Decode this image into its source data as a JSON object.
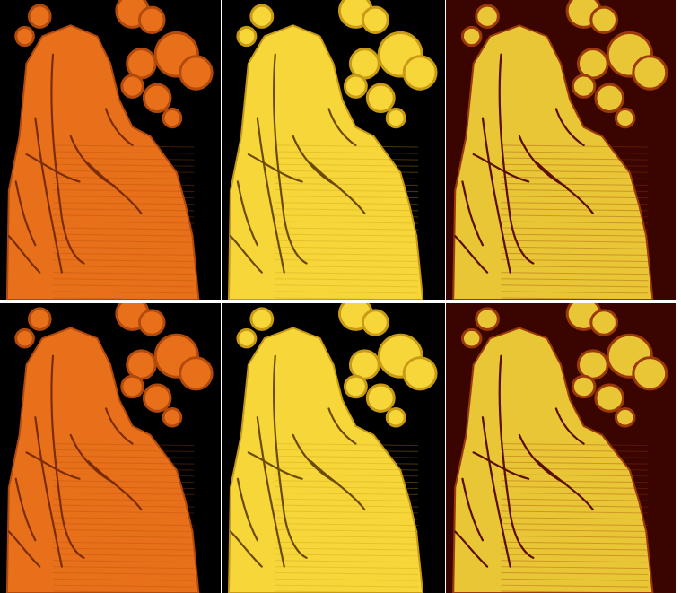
{
  "grid": {
    "rows": 2,
    "columns": 3,
    "panels": [
      {
        "row": 1,
        "col": 1,
        "colormap": "orange",
        "base": "#e8701a",
        "dark": "#7a2c05",
        "shade": "#b34a0c",
        "bg": "#000000"
      },
      {
        "row": 1,
        "col": 2,
        "colormap": "yellow",
        "base": "#f7d63a",
        "dark": "#6b4a05",
        "shade": "#c99a14",
        "bg": "#000000"
      },
      {
        "row": 1,
        "col": 3,
        "colormap": "yellow-red",
        "base": "#e9c636",
        "dark": "#5a0f02",
        "shade": "#9b3a08",
        "bg": "#3a0500"
      },
      {
        "row": 2,
        "col": 1,
        "colormap": "orange",
        "base": "#e8701a",
        "dark": "#7a2c05",
        "shade": "#b34a0c",
        "bg": "#000000"
      },
      {
        "row": 2,
        "col": 2,
        "colormap": "yellow",
        "base": "#f7d63a",
        "dark": "#6b4a05",
        "shade": "#c99a14",
        "bg": "#000000"
      },
      {
        "row": 2,
        "col": 3,
        "colormap": "yellow-red",
        "base": "#e9c636",
        "dark": "#5a0f02",
        "shade": "#9b3a08",
        "bg": "#3a0500"
      }
    ]
  }
}
